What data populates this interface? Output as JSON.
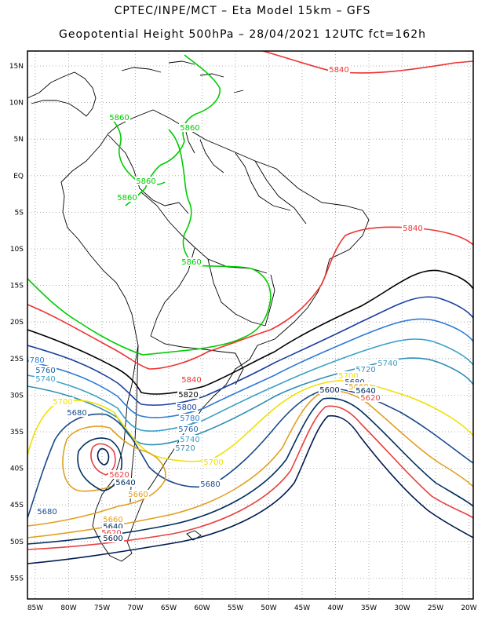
{
  "header": {
    "line1": "CPTEC/INPE/MCT  –   Eta Model 15km  –  GFS",
    "line2": "Geopotential Height 500hPa  –  28/04/2021 12UTC fct=162h"
  },
  "axes": {
    "lat_labels": [
      "15N",
      "10N",
      "5N",
      "EQ",
      "5S",
      "10S",
      "15S",
      "20S",
      "25S",
      "30S",
      "35S",
      "40S",
      "45S",
      "50S",
      "55S"
    ],
    "lon_labels": [
      "85W",
      "80W",
      "75W",
      "70W",
      "65W",
      "60W",
      "55W",
      "50W",
      "45W",
      "40W",
      "35W",
      "30W",
      "25W",
      "20W"
    ]
  },
  "contour_colors": {
    "5860": "#00cc00",
    "5840": "#ee3333",
    "5820": "#000000",
    "5800": "#1a3fa0",
    "5780": "#2b7bd6",
    "5760": "#1e5f9e",
    "5740": "#3aa0c8",
    "5720": "#2f8fb5",
    "5700": "#f0e000",
    "5680": "#1a4a8a",
    "5660": "#e0a020",
    "5640": "#003060",
    "5620": "#e84040",
    "5600": "#001a50"
  },
  "contour_labels": [
    {
      "text": "5840",
      "level": "5840"
    },
    {
      "text": "5860",
      "level": "5860"
    },
    {
      "text": "5860",
      "level": "5860"
    },
    {
      "text": "5860",
      "level": "5860"
    },
    {
      "text": "5860",
      "level": "5860"
    },
    {
      "text": "5860",
      "level": "5860"
    },
    {
      "text": "5840",
      "level": "5840"
    },
    {
      "text": "5780",
      "level": "5780"
    },
    {
      "text": "5760",
      "level": "5760"
    },
    {
      "text": "5740",
      "level": "5740"
    },
    {
      "text": "5840",
      "level": "5840"
    },
    {
      "text": "5820",
      "level": "5820"
    },
    {
      "text": "5700",
      "level": "5700"
    },
    {
      "text": "5680",
      "level": "5680"
    },
    {
      "text": "5800",
      "level": "5800"
    },
    {
      "text": "5780",
      "level": "5780"
    },
    {
      "text": "5760",
      "level": "5760"
    },
    {
      "text": "5740",
      "level": "5740"
    },
    {
      "text": "5720",
      "level": "5720"
    },
    {
      "text": "5700",
      "level": "5700"
    },
    {
      "text": "5740",
      "level": "5740"
    },
    {
      "text": "5720",
      "level": "5720"
    },
    {
      "text": "5700",
      "level": "5700"
    },
    {
      "text": "5680",
      "level": "5680"
    },
    {
      "text": "5660",
      "level": "5660"
    },
    {
      "text": "5640",
      "level": "5640"
    },
    {
      "text": "5600",
      "level": "5600"
    },
    {
      "text": "5620",
      "level": "5620"
    },
    {
      "text": "5620",
      "level": "5620"
    },
    {
      "text": "5640",
      "level": "5640"
    },
    {
      "text": "5660",
      "level": "5660"
    },
    {
      "text": "5680",
      "level": "5680"
    },
    {
      "text": "5680",
      "level": "5680"
    },
    {
      "text": "5660",
      "level": "5660"
    },
    {
      "text": "5640",
      "level": "5640"
    },
    {
      "text": "5620",
      "level": "5620"
    },
    {
      "text": "5600",
      "level": "5600"
    }
  ]
}
